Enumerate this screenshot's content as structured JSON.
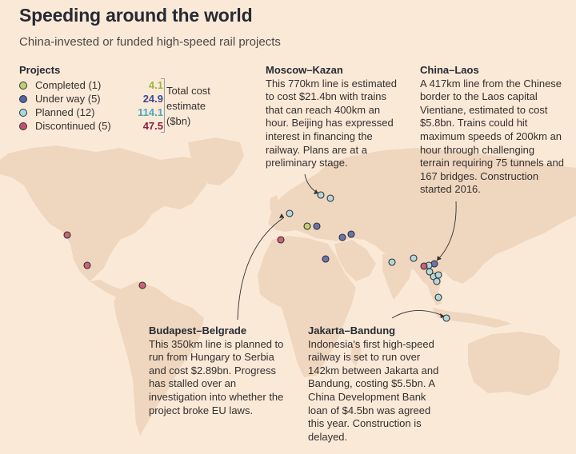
{
  "header": {
    "title": "Speeding around the world",
    "subtitle": "China-invested or funded high-speed rail projects"
  },
  "legend": {
    "title": "Projects",
    "items": [
      {
        "label": "Completed (1)",
        "value": "4.1",
        "color": "#9eb53b"
      },
      {
        "label": "Under way (5)",
        "value": "24.9",
        "color": "#3a4a8f"
      },
      {
        "label": "Planned (12)",
        "value": "114.1",
        "color": "#63b8c8"
      },
      {
        "label": "Discontinued (5)",
        "value": "47.5",
        "color": "#8b1e3f"
      }
    ],
    "total_label": "Total cost estimate ($bn)"
  },
  "annotations": {
    "moscow_kazan": {
      "title": "Moscow–Kazan",
      "text": "This 770km line is estimated to cost $21.4bn with trains that can reach 400km an hour. Beijing has expressed interest in financing the railway. Plans are at a preliminary stage."
    },
    "china_laos": {
      "title": "China–Laos",
      "text": "A 417km line from the Chinese border to the Laos capital Vientiane, estimated to cost $5.8bn. Trains could hit maximum speeds of 200km an hour through challenging terrain requiring 75 tunnels and 167 bridges. Construction started 2016."
    },
    "budapest_belgrade": {
      "title": "Budapest–Belgrade",
      "text": "This 350km line is planned to run from Hungary to Serbia and cost $2.89bn. Progress has stalled over an investigation into whether the project broke EU laws."
    },
    "jakarta_bandung": {
      "title": "Jakarta–Bandung",
      "text": "Indonesia's first high-speed railway is set to run over 142km between Jakarta and Bandung, costing $5.5bn. A China Development Bank loan of $4.5bn was agreed this year. Construction is delayed."
    }
  },
  "map": {
    "land_color": "#efd6bf",
    "markers": [
      {
        "status": "completed"
      },
      {
        "status": "under-way"
      },
      {
        "status": "under-way"
      },
      {
        "status": "under-way"
      },
      {
        "status": "under-way"
      },
      {
        "status": "under-way"
      },
      {
        "status": "planned"
      },
      {
        "status": "planned"
      },
      {
        "status": "planned"
      },
      {
        "status": "planned"
      },
      {
        "status": "planned"
      },
      {
        "status": "planned"
      },
      {
        "status": "planned"
      },
      {
        "status": "planned"
      },
      {
        "status": "planned"
      },
      {
        "status": "planned"
      },
      {
        "status": "planned"
      },
      {
        "status": "planned"
      },
      {
        "status": "discontinued"
      },
      {
        "status": "discontinued"
      },
      {
        "status": "discontinued"
      },
      {
        "status": "discontinued"
      },
      {
        "status": "discontinued"
      }
    ]
  }
}
